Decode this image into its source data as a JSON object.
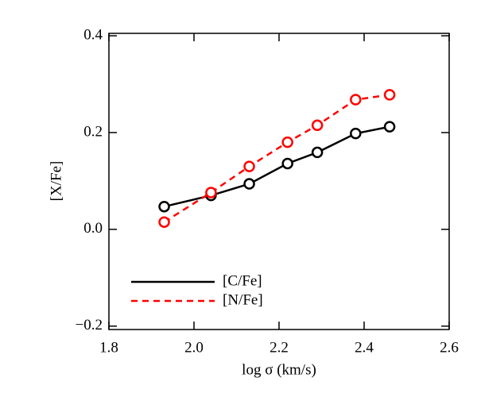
{
  "chart_data": {
    "type": "line",
    "x_label": "log σ (km/s)",
    "y_label": "[X/Fe]",
    "x": [
      1.93,
      2.04,
      2.13,
      2.22,
      2.29,
      2.38,
      2.46
    ],
    "series": [
      {
        "name": "[C/Fe]",
        "color": "#000000",
        "dash": "solid",
        "values": [
          0.047,
          0.07,
          0.094,
          0.136,
          0.159,
          0.198,
          0.212
        ]
      },
      {
        "name": "[N/Fe]",
        "color": "#ff0000",
        "dash": "dashed",
        "values": [
          0.015,
          0.076,
          0.13,
          0.18,
          0.215,
          0.268,
          0.278
        ]
      }
    ],
    "xlim": [
      1.8,
      2.6
    ],
    "xticks": [
      1.8,
      {
        "value": 2.0,
        "label": "2.0"
      },
      2.2,
      2.4,
      2.6
    ],
    "ylim": [
      -0.207,
      0.405
    ],
    "yticks": [
      {
        "value": -0.2,
        "label": "−0.2"
      },
      {
        "value": 0,
        "label": "0.0"
      },
      0.2,
      0.4
    ],
    "legend": "lower left"
  }
}
